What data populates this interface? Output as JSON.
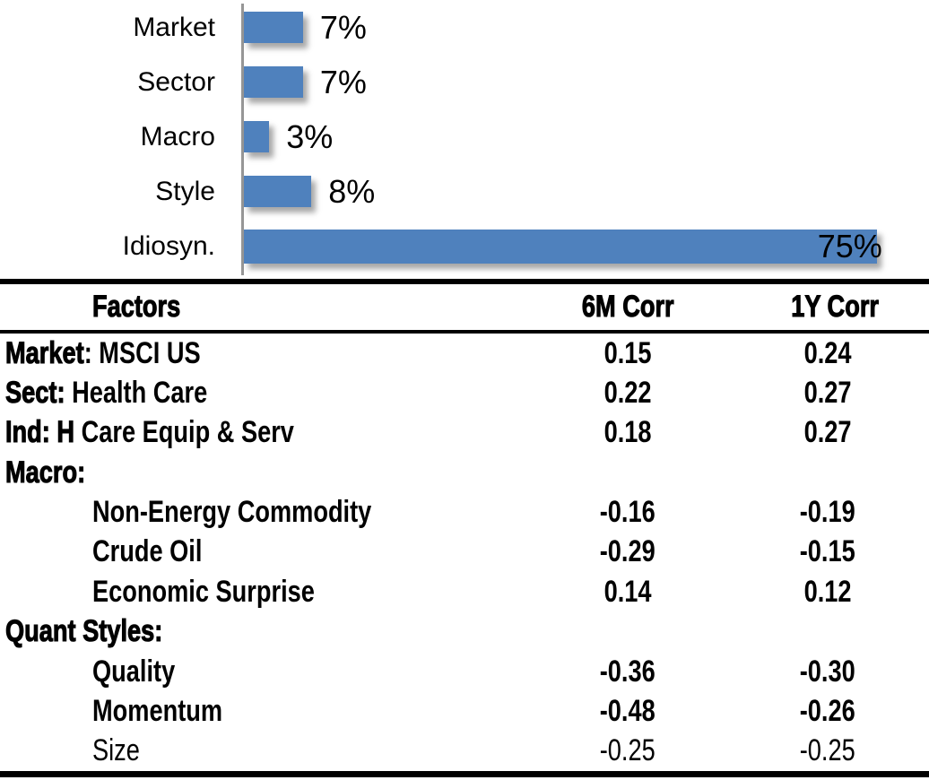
{
  "colors": {
    "bar_fill": "#4F81BD",
    "axis_line": "#969696",
    "rule": "#000000",
    "text": "#000000",
    "background": "#FFFFFF"
  },
  "chart_data": [
    {
      "type": "bar",
      "orientation": "horizontal",
      "title": "",
      "xlabel": "",
      "ylabel": "",
      "categories": [
        "Market",
        "Sector",
        "Macro",
        "Style",
        "Idiosyn."
      ],
      "values": [
        7,
        7,
        3,
        8,
        75
      ],
      "value_labels": [
        "7%",
        "7%",
        "3%",
        "8%",
        "75%"
      ],
      "unit": "%",
      "xlim": [
        0,
        75
      ],
      "grid": false,
      "legend": false,
      "bar_color": "#4F81BD"
    },
    {
      "type": "table",
      "columns": [
        "Factors",
        "6M Corr",
        "1Y Corr"
      ],
      "rows": [
        {
          "factor_prefix": "Market",
          "factor_rest": ": MSCI US",
          "indent": false,
          "muted": false,
          "corr_6m": "0.15",
          "corr_1y": "0.24"
        },
        {
          "factor_prefix": "Sect:",
          "factor_rest": " Health Care",
          "indent": false,
          "muted": false,
          "corr_6m": "0.22",
          "corr_1y": "0.27"
        },
        {
          "factor_prefix": "Ind: H",
          "factor_rest": " Care Equip & Serv",
          "indent": false,
          "muted": false,
          "corr_6m": "0.18",
          "corr_1y": "0.27"
        },
        {
          "factor_prefix": "Macro:",
          "factor_rest": "",
          "indent": false,
          "muted": false,
          "corr_6m": "",
          "corr_1y": ""
        },
        {
          "factor_prefix": "",
          "factor_rest": "Non-Energy Commodity",
          "indent": true,
          "muted": false,
          "corr_6m": "-0.16",
          "corr_1y": "-0.19"
        },
        {
          "factor_prefix": "",
          "factor_rest": "Crude Oil",
          "indent": true,
          "muted": false,
          "corr_6m": "-0.29",
          "corr_1y": "-0.15"
        },
        {
          "factor_prefix": "",
          "factor_rest": "Economic Surprise",
          "indent": true,
          "muted": false,
          "corr_6m": "0.14",
          "corr_1y": "0.12"
        },
        {
          "factor_prefix": "Quant Styles:",
          "factor_rest": "",
          "indent": false,
          "muted": false,
          "corr_6m": "",
          "corr_1y": ""
        },
        {
          "factor_prefix": "",
          "factor_rest": "Quality",
          "indent": true,
          "muted": false,
          "corr_6m": "-0.36",
          "corr_1y": "-0.30"
        },
        {
          "factor_prefix": "",
          "factor_rest": "Momentum",
          "indent": true,
          "muted": false,
          "corr_6m": "-0.48",
          "corr_1y": "-0.26"
        },
        {
          "factor_prefix": "",
          "factor_rest": "Size",
          "indent": true,
          "muted": true,
          "corr_6m": "-0.25",
          "corr_1y": "-0.25"
        }
      ]
    }
  ]
}
